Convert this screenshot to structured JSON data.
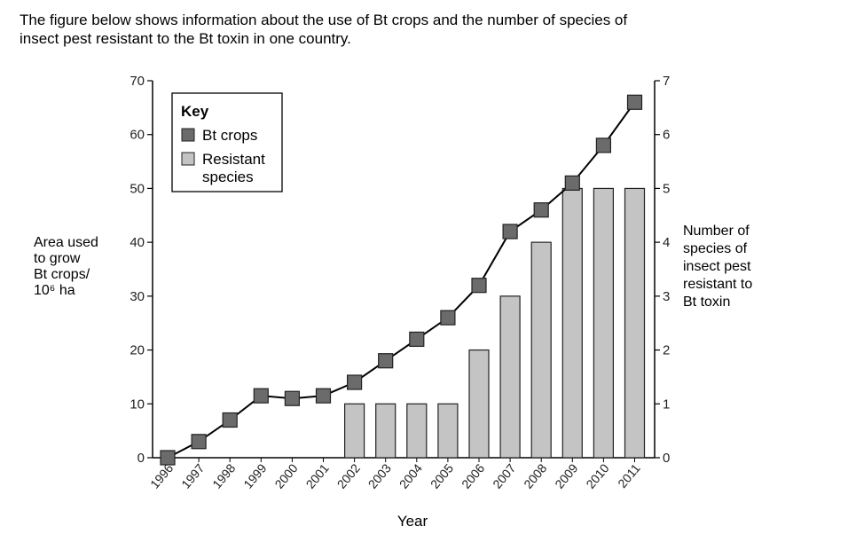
{
  "question": {
    "line1": "The figure below shows information about the use of Bt crops and the number of species of",
    "line2": "insect pest resistant to the Bt toxin in one country."
  },
  "chart_data": {
    "type": "bar+line",
    "xlabel": "Year",
    "ylabel_left": [
      "Area used",
      "to grow",
      "Bt crops/",
      "10⁶ ha"
    ],
    "ylabel_right": [
      "Number of",
      "species of",
      "insect pest",
      "resistant to",
      "Bt toxin"
    ],
    "ylim_left": [
      0,
      70
    ],
    "ylim_right": [
      0,
      7
    ],
    "yticks_left": [
      0,
      10,
      20,
      30,
      40,
      50,
      60,
      70
    ],
    "yticks_right": [
      0,
      1,
      2,
      3,
      4,
      5,
      6,
      7
    ],
    "categories": [
      "1996",
      "1997",
      "1998",
      "1999",
      "2000",
      "2001",
      "2002",
      "2003",
      "2004",
      "2005",
      "2006",
      "2007",
      "2008",
      "2009",
      "2010",
      "2011"
    ],
    "legend": {
      "title": "Key",
      "items": [
        "Bt crops",
        "Resistant species"
      ],
      "placement": "top-left"
    },
    "series": [
      {
        "name": "Bt crops",
        "kind": "line",
        "axis": "left",
        "color": "#6b6b6b",
        "values": [
          0,
          3,
          7,
          11.5,
          11,
          11.5,
          14,
          18,
          22,
          26,
          32,
          42,
          46,
          51,
          58,
          66
        ]
      },
      {
        "name": "Resistant species",
        "kind": "bar",
        "axis": "right",
        "color": "#c4c4c4",
        "values": [
          0,
          0,
          0,
          0,
          0,
          0,
          1,
          1,
          1,
          1,
          2,
          3,
          4,
          5,
          5,
          5
        ]
      }
    ]
  }
}
